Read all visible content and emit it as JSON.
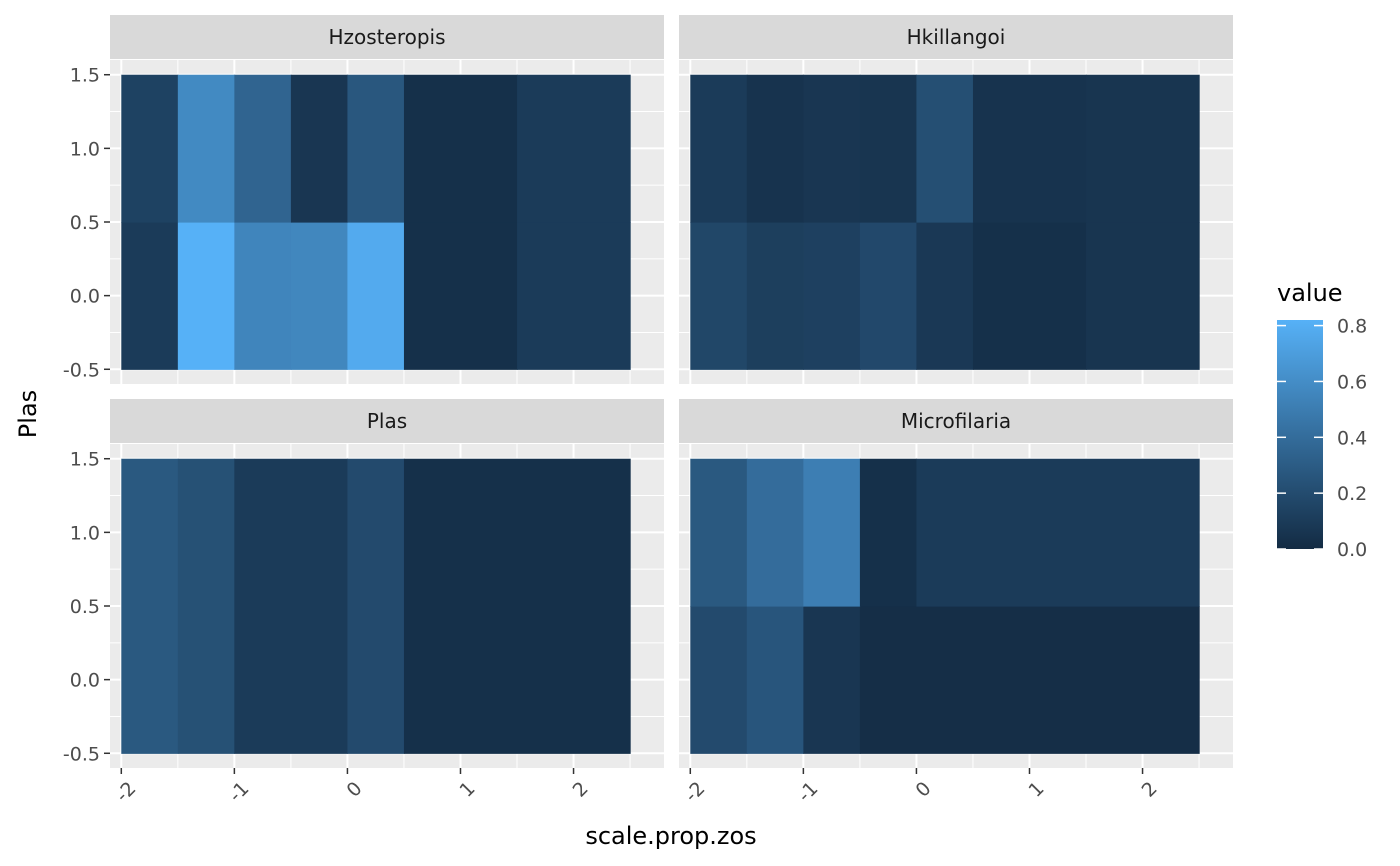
{
  "chart_data": {
    "type": "heatmap",
    "xlabel": "scale.prop.zos",
    "ylabel": "Plas",
    "x_ticks": [
      -2,
      -1,
      0,
      1,
      2
    ],
    "x_tick_labels": [
      "-2",
      "-1",
      "0",
      "1",
      "2"
    ],
    "y_ticks": [
      -0.5,
      0.0,
      0.5,
      1.0,
      1.5
    ],
    "y_tick_labels": [
      "-0.5",
      "0.0",
      "0.5",
      "1.0",
      "1.5"
    ],
    "xlim": [
      -2.1,
      2.8
    ],
    "ylim": [
      -0.6,
      1.6
    ],
    "grid": true,
    "facet_layout": "2x2",
    "legend": {
      "title": "value",
      "placement": "right",
      "min": 0.0,
      "max": 0.82,
      "breaks": [
        0.0,
        0.2,
        0.4,
        0.6,
        0.8
      ],
      "break_labels": [
        "0.0",
        "0.2",
        "0.4",
        "0.6",
        "0.8"
      ],
      "low_color": "#132B43",
      "high_color": "#56B1F7"
    },
    "facets": [
      {
        "name": "Hzosteropis",
        "tiles": [
          {
            "x0": -2,
            "x1": -1.5,
            "y0": -0.5,
            "y1": 0.5,
            "value": 0.1
          },
          {
            "x0": -1.5,
            "x1": -1,
            "y0": -0.5,
            "y1": 0.5,
            "value": 0.82
          },
          {
            "x0": -1,
            "x1": -0.5,
            "y0": -0.5,
            "y1": 0.5,
            "value": 0.55
          },
          {
            "x0": -0.5,
            "x1": 0,
            "y0": -0.5,
            "y1": 0.5,
            "value": 0.56
          },
          {
            "x0": 0,
            "x1": 0.5,
            "y0": -0.5,
            "y1": 0.5,
            "value": 0.78
          },
          {
            "x0": 0.5,
            "x1": 1.5,
            "y0": -0.5,
            "y1": 0.5,
            "value": 0.03
          },
          {
            "x0": 1.5,
            "x1": 2.5,
            "y0": -0.5,
            "y1": 0.5,
            "value": 0.1
          },
          {
            "x0": -2,
            "x1": -1.5,
            "y0": 0.5,
            "y1": 1.5,
            "value": 0.14
          },
          {
            "x0": -1.5,
            "x1": -1,
            "y0": 0.5,
            "y1": 1.5,
            "value": 0.58
          },
          {
            "x0": -1,
            "x1": -0.5,
            "y0": 0.5,
            "y1": 1.5,
            "value": 0.35
          },
          {
            "x0": -0.5,
            "x1": 0,
            "y0": 0.5,
            "y1": 1.5,
            "value": 0.07
          },
          {
            "x0": 0,
            "x1": 0.5,
            "y0": 0.5,
            "y1": 1.5,
            "value": 0.27
          },
          {
            "x0": 0.5,
            "x1": 1.5,
            "y0": 0.5,
            "y1": 1.5,
            "value": 0.03
          },
          {
            "x0": 1.5,
            "x1": 2.5,
            "y0": 0.5,
            "y1": 1.5,
            "value": 0.1
          }
        ]
      },
      {
        "name": "Hkillangoi",
        "tiles": [
          {
            "x0": -2,
            "x1": -1.5,
            "y0": -0.5,
            "y1": 0.5,
            "value": 0.17
          },
          {
            "x0": -1.5,
            "x1": -1,
            "y0": -0.5,
            "y1": 0.5,
            "value": 0.12
          },
          {
            "x0": -1,
            "x1": -0.5,
            "y0": -0.5,
            "y1": 0.5,
            "value": 0.13
          },
          {
            "x0": -0.5,
            "x1": 0,
            "y0": -0.5,
            "y1": 0.5,
            "value": 0.18
          },
          {
            "x0": 0,
            "x1": 0.5,
            "y0": -0.5,
            "y1": 0.5,
            "value": 0.08
          },
          {
            "x0": 0.5,
            "x1": 1.5,
            "y0": -0.5,
            "y1": 0.5,
            "value": 0.03
          },
          {
            "x0": 1.5,
            "x1": 2.5,
            "y0": -0.5,
            "y1": 0.5,
            "value": 0.06
          },
          {
            "x0": -2,
            "x1": -1.5,
            "y0": 0.5,
            "y1": 1.5,
            "value": 0.1
          },
          {
            "x0": -1.5,
            "x1": -1,
            "y0": 0.5,
            "y1": 1.5,
            "value": 0.05
          },
          {
            "x0": -1,
            "x1": -0.5,
            "y0": 0.5,
            "y1": 1.5,
            "value": 0.07
          },
          {
            "x0": -0.5,
            "x1": 0,
            "y0": 0.5,
            "y1": 1.5,
            "value": 0.06
          },
          {
            "x0": 0,
            "x1": 0.5,
            "y0": 0.5,
            "y1": 1.5,
            "value": 0.22
          },
          {
            "x0": 0.5,
            "x1": 1.5,
            "y0": 0.5,
            "y1": 1.5,
            "value": 0.05
          },
          {
            "x0": 1.5,
            "x1": 2.5,
            "y0": 0.5,
            "y1": 1.5,
            "value": 0.06
          }
        ]
      },
      {
        "name": "Plas",
        "tiles": [
          {
            "x0": -2,
            "x1": -1.5,
            "y0": -0.5,
            "y1": 1.5,
            "value": 0.28
          },
          {
            "x0": -1.5,
            "x1": -1,
            "y0": -0.5,
            "y1": 1.5,
            "value": 0.23
          },
          {
            "x0": -1,
            "x1": 0,
            "y0": -0.5,
            "y1": 1.5,
            "value": 0.1
          },
          {
            "x0": 0,
            "x1": 0.5,
            "y0": -0.5,
            "y1": 1.5,
            "value": 0.19
          },
          {
            "x0": 0.5,
            "x1": 2.5,
            "y0": -0.5,
            "y1": 1.5,
            "value": 0.03
          }
        ]
      },
      {
        "name": "Microfilaria",
        "tiles": [
          {
            "x0": -2,
            "x1": -1.5,
            "y0": -0.5,
            "y1": 0.5,
            "value": 0.19
          },
          {
            "x0": -1.5,
            "x1": -1,
            "y0": -0.5,
            "y1": 0.5,
            "value": 0.26
          },
          {
            "x0": -1,
            "x1": -0.5,
            "y0": -0.5,
            "y1": 0.5,
            "value": 0.07
          },
          {
            "x0": -0.5,
            "x1": 2.5,
            "y0": -0.5,
            "y1": 0.5,
            "value": 0.02
          },
          {
            "x0": -2,
            "x1": -1.5,
            "y0": 0.5,
            "y1": 1.5,
            "value": 0.28
          },
          {
            "x0": -1.5,
            "x1": -1,
            "y0": 0.5,
            "y1": 1.5,
            "value": 0.4
          },
          {
            "x0": -1,
            "x1": -0.5,
            "y0": 0.5,
            "y1": 1.5,
            "value": 0.51
          },
          {
            "x0": -0.5,
            "x1": 0,
            "y0": 0.5,
            "y1": 1.5,
            "value": 0.03
          },
          {
            "x0": 0,
            "x1": 2.5,
            "y0": 0.5,
            "y1": 1.5,
            "value": 0.1
          }
        ]
      }
    ]
  }
}
